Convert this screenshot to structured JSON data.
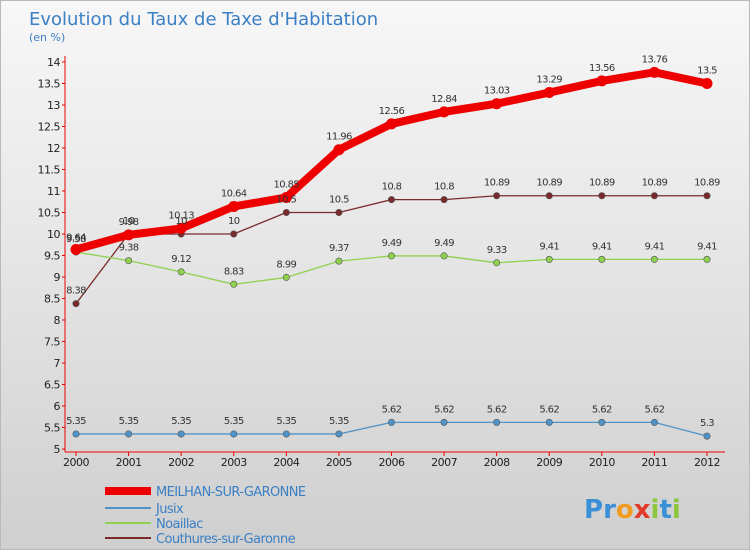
{
  "chart_data": {
    "type": "line",
    "title": "Evolution du Taux de Taxe d'Habitation",
    "subtitle": "(en %)",
    "x": [
      "2000",
      "2001",
      "2002",
      "2003",
      "2004",
      "2005",
      "2006",
      "2007",
      "2008",
      "2009",
      "2010",
      "2011",
      "2012"
    ],
    "ylim": [
      5,
      14
    ],
    "yticks": [
      5,
      5.5,
      6,
      6.5,
      7,
      7.5,
      8,
      8.5,
      9,
      9.5,
      10,
      10.5,
      11,
      11.5,
      12,
      12.5,
      13,
      13.5,
      14
    ],
    "grid": false,
    "legend_position": "bottom-left",
    "series": [
      {
        "name": "MEILHAN-SUR-GARONNE",
        "color": "#ee0000",
        "values": [
          9.64,
          9.98,
          10.13,
          10.64,
          10.85,
          11.96,
          12.56,
          12.84,
          13.03,
          13.29,
          13.56,
          13.76,
          13.5
        ],
        "labels": [
          "9.64",
          "9.98",
          "10.13",
          "10.64",
          "10.85",
          "11.96",
          "12.56",
          "12.84",
          "13.03",
          "13.29",
          "13.56",
          "13.76",
          "13.5"
        ]
      },
      {
        "name": "Jusix",
        "color": "#4f93c8",
        "values": [
          5.35,
          5.35,
          5.35,
          5.35,
          5.35,
          5.35,
          5.62,
          5.62,
          5.62,
          5.62,
          5.62,
          5.62,
          5.3
        ],
        "labels": [
          "5.35",
          "5.35",
          "5.35",
          "5.35",
          "5.35",
          "5.35",
          "5.62",
          "5.62",
          "5.62",
          "5.62",
          "5.62",
          "5.62",
          "5.3"
        ]
      },
      {
        "name": "Noaillac",
        "color": "#8fd14f",
        "values": [
          9.58,
          9.38,
          9.12,
          8.83,
          8.99,
          9.37,
          9.49,
          9.49,
          9.33,
          9.41,
          9.41,
          9.41,
          9.41
        ],
        "labels": [
          "9.58",
          "9.38",
          "9.12",
          "8.83",
          "8.99",
          "9.37",
          "9.49",
          "9.49",
          "9.33",
          "9.41",
          "9.41",
          "9.41",
          "9.41"
        ]
      },
      {
        "name": "Couthures-sur-Garonne",
        "color": "#7a2a2a",
        "values": [
          8.38,
          10,
          10,
          10,
          10.5,
          10.5,
          10.8,
          10.8,
          10.89,
          10.89,
          10.89,
          10.89,
          10.89
        ],
        "labels": [
          "8.38",
          "10",
          "10",
          "10",
          "10.5",
          "10.5",
          "10.8",
          "10.8",
          "10.89",
          "10.89",
          "10.89",
          "10.89",
          "10.89"
        ]
      }
    ]
  },
  "branding": {
    "logo_letters": [
      "P",
      "r",
      "o",
      "x",
      "i",
      "t",
      "i"
    ],
    "logo_colors": [
      "#3a8fd6",
      "#3a8fd6",
      "#f29c1f",
      "#e13a2a",
      "#8cc63f",
      "#3a8fd6",
      "#8cc63f"
    ]
  }
}
